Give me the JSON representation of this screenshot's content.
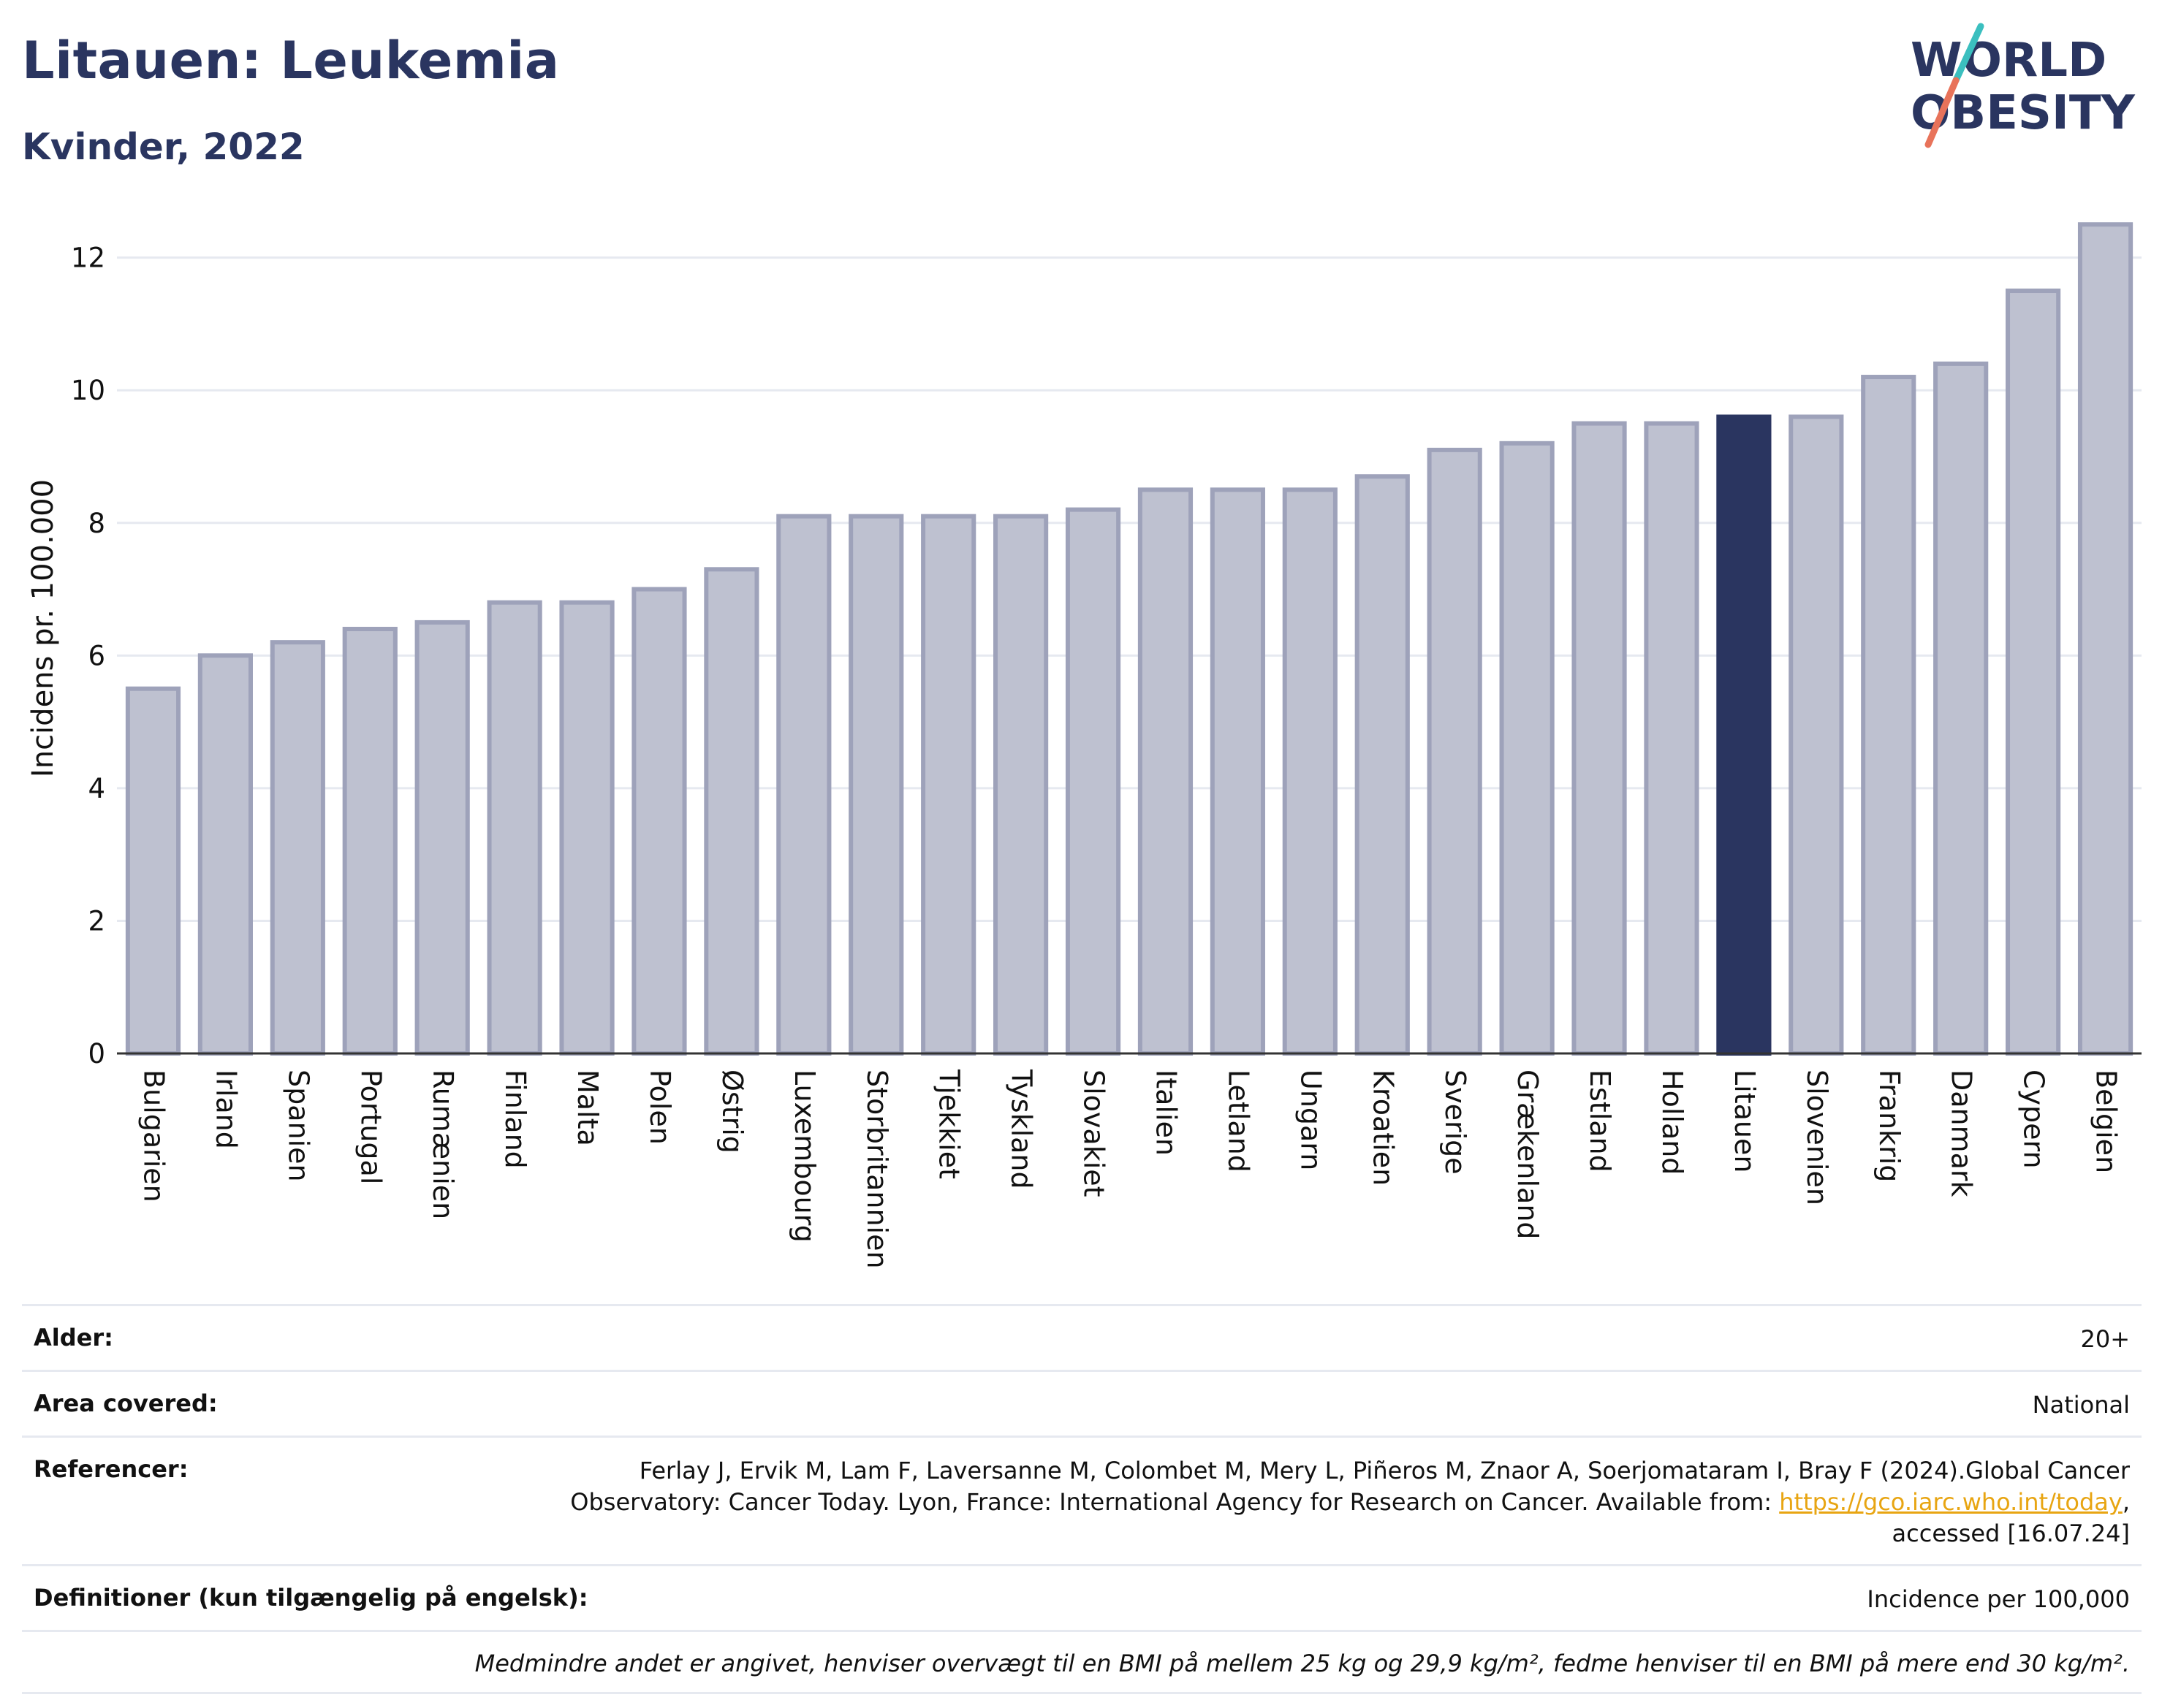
{
  "header": {
    "title": "Litauen: Leukemia",
    "subtitle": "Kvinder, 2022"
  },
  "logo": {
    "line1": "WORLD",
    "line2": "OBESITY",
    "colors": {
      "text": "#2a3560",
      "slash_teal": "#3bbfbf",
      "slash_coral": "#e8735a"
    }
  },
  "chart_data": {
    "type": "bar",
    "title": "Litauen: Leukemia",
    "subtitle": "Kvinder, 2022",
    "xlabel": "",
    "ylabel": "Incidens pr. 100.000",
    "ylim": [
      0,
      12.8
    ],
    "yticks": [
      0,
      2,
      4,
      6,
      8,
      10,
      12
    ],
    "grid": true,
    "highlight": "Litauen",
    "colors": {
      "default": "#bec1d0",
      "default_border": "#9ea2ba",
      "highlight": "#2a3560"
    },
    "categories": [
      "Bulgarien",
      "Irland",
      "Spanien",
      "Portugal",
      "Rumænien",
      "Finland",
      "Malta",
      "Polen",
      "Østrig",
      "Luxembourg",
      "Storbritannien",
      "Tjekkiet",
      "Tyskland",
      "Slovakiet",
      "Italien",
      "Letland",
      "Ungarn",
      "Kroatien",
      "Sverige",
      "Grækenland",
      "Estland",
      "Holland",
      "Litauen",
      "Slovenien",
      "Frankrig",
      "Danmark",
      "Cypern",
      "Belgien"
    ],
    "values": [
      5.5,
      6.0,
      6.2,
      6.4,
      6.5,
      6.8,
      6.8,
      7.0,
      7.3,
      8.1,
      8.1,
      8.1,
      8.1,
      8.2,
      8.5,
      8.5,
      8.5,
      8.7,
      9.1,
      9.2,
      9.5,
      9.5,
      9.6,
      9.6,
      10.2,
      10.4,
      11.5,
      12.5
    ]
  },
  "meta": {
    "age_label": "Alder:",
    "age_value": "20+",
    "area_label": "Area covered:",
    "area_value": "National",
    "refs_label": "Referencer:",
    "refs_line1": "Ferlay J, Ervik M, Lam F, Laversanne M, Colombet M, Mery L, Piñeros M, Znaor A, Soerjomataram I, Bray F (2024).Global Cancer",
    "refs_line2_pre": "Observatory: Cancer Today. Lyon, France: International Agency for Research on Cancer. Available from: ",
    "refs_link": "https://gco.iarc.who.int/today",
    "refs_line2_post": ",",
    "refs_line3": "accessed [16.07.24]",
    "def_label": "Definitioner (kun tilgængelig på engelsk):",
    "def_value": "Incidence per 100,000",
    "note": "Medmindre andet er angivet, henviser overvægt til en BMI på mellem 25 kg og 29,9 kg/m², fedme henviser til en BMI på mere end 30 kg/m²."
  }
}
